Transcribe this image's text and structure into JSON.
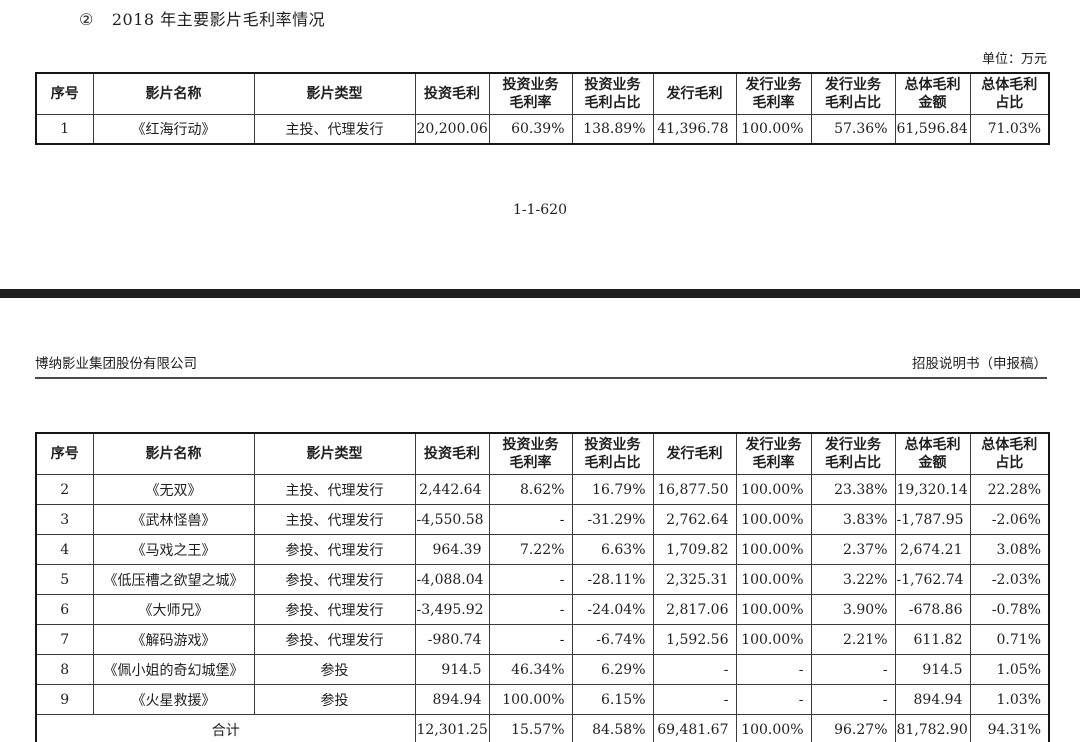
{
  "page_top": {
    "section_marker": "②",
    "section_title": "2018 年主要影片毛利率情况",
    "unit_label": "单位：万元",
    "page_number": "1-1-620",
    "table": {
      "headers": [
        "序号",
        "影片名称",
        "影片类型",
        "投资毛利",
        "投资业务\n毛利率",
        "投资业务\n毛利占比",
        "发行毛利",
        "发行业务\n毛利率",
        "发行业务\n毛利占比",
        "总体毛利\n金额",
        "总体毛利\n占比"
      ],
      "rows": [
        [
          "1",
          "《红海行动》",
          "主投、代理发行",
          "20,200.06",
          "60.39%",
          "138.89%",
          "41,396.78",
          "100.00%",
          "57.36%",
          "61,596.84",
          "71.03%"
        ]
      ]
    }
  },
  "page_bottom": {
    "header_left": "博纳影业集团股份有限公司",
    "header_right": "招股说明书（申报稿）",
    "table": {
      "headers": [
        "序号",
        "影片名称",
        "影片类型",
        "投资毛利",
        "投资业务\n毛利率",
        "投资业务\n毛利占比",
        "发行毛利",
        "发行业务\n毛利率",
        "发行业务\n毛利占比",
        "总体毛利\n金额",
        "总体毛利\n占比"
      ],
      "rows": [
        [
          "2",
          "《无双》",
          "主投、代理发行",
          "2,442.64",
          "8.62%",
          "16.79%",
          "16,877.50",
          "100.00%",
          "23.38%",
          "19,320.14",
          "22.28%"
        ],
        [
          "3",
          "《武林怪兽》",
          "主投、代理发行",
          "-4,550.58",
          "-",
          "-31.29%",
          "2,762.64",
          "100.00%",
          "3.83%",
          "-1,787.95",
          "-2.06%"
        ],
        [
          "4",
          "《马戏之王》",
          "参投、代理发行",
          "964.39",
          "7.22%",
          "6.63%",
          "1,709.82",
          "100.00%",
          "2.37%",
          "2,674.21",
          "3.08%"
        ],
        [
          "5",
          "《低压槽之欲望之城》",
          "参投、代理发行",
          "-4,088.04",
          "-",
          "-28.11%",
          "2,325.31",
          "100.00%",
          "3.22%",
          "-1,762.74",
          "-2.03%"
        ],
        [
          "6",
          "《大师兄》",
          "参投、代理发行",
          "-3,495.92",
          "-",
          "-24.04%",
          "2,817.06",
          "100.00%",
          "3.90%",
          "-678.86",
          "-0.78%"
        ],
        [
          "7",
          "《解码游戏》",
          "参投、代理发行",
          "-980.74",
          "-",
          "-6.74%",
          "1,592.56",
          "100.00%",
          "2.21%",
          "611.82",
          "0.71%"
        ],
        [
          "8",
          "《佩小姐的奇幻城堡》",
          "参投",
          "914.5",
          "46.34%",
          "6.29%",
          "-",
          "-",
          "-",
          "914.5",
          "1.05%"
        ],
        [
          "9",
          "《火星救援》",
          "参投",
          "894.94",
          "100.00%",
          "6.15%",
          "-",
          "-",
          "-",
          "894.94",
          "1.03%"
        ]
      ],
      "total_row": {
        "label": "合计",
        "values": [
          "12,301.25",
          "15.57%",
          "84.58%",
          "69,481.67",
          "100.00%",
          "96.27%",
          "81,782.90",
          "94.31%"
        ]
      }
    }
  },
  "colors": {
    "page_break_bar": "#1d1f21",
    "table_border": "#3c3c3c",
    "text": "#1f1f1f"
  }
}
